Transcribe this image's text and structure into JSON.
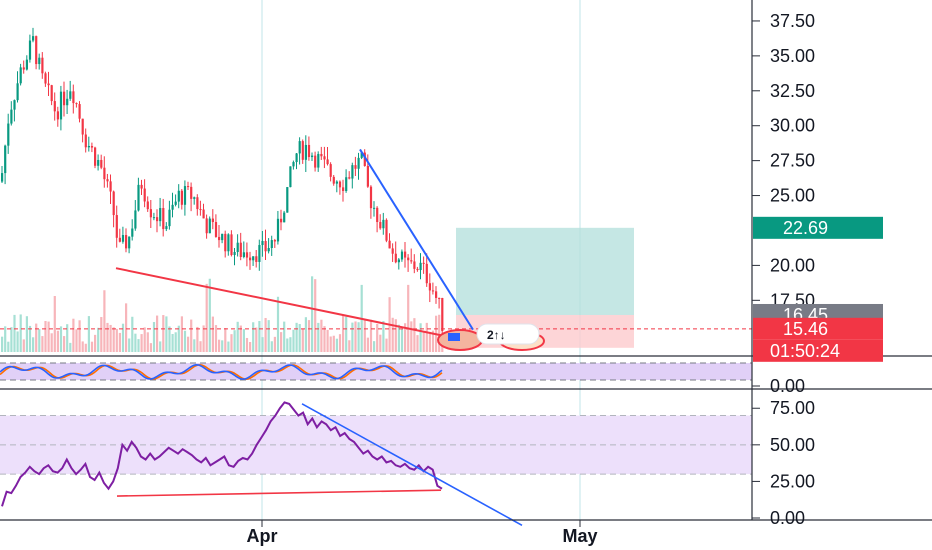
{
  "chart_data": [
    {
      "type": "candlestick",
      "pane": "price",
      "y_ticks": [
        "37.50",
        "35.00",
        "32.50",
        "30.00",
        "27.50",
        "25.00",
        "20.00",
        "17.50"
      ],
      "ylim": [
        13.8,
        39.0
      ],
      "x_labels": [
        "Apr",
        "May"
      ],
      "price_tags": [
        {
          "value": 22.69,
          "text": "22.69",
          "color": "#089981"
        },
        {
          "value": 16.45,
          "text": "16.45",
          "color": "#787b86"
        },
        {
          "value": 15.46,
          "text": "15.46",
          "color": "#f23645"
        }
      ],
      "countdown": {
        "text": "01:50:24",
        "color": "#f23645"
      },
      "current_price": 15.46,
      "position": {
        "target": 22.69,
        "entry": 16.45,
        "stop": 14.1
      },
      "badge": {
        "text": "2↑↓"
      },
      "trendlines": [
        {
          "color": "#f23645",
          "from": [
            116,
            19.8
          ],
          "to": [
            441,
            15.0
          ]
        },
        {
          "color": "#2962ff",
          "from": [
            360,
            28.3
          ],
          "to": [
            473,
            15.4
          ]
        }
      ],
      "colors": {
        "up": "#089981",
        "down": "#f23645",
        "target_zone": "#b2dfdb",
        "stop_zone": "#fccbcd"
      }
    },
    {
      "type": "line",
      "pane": "stochastic",
      "y_ticks": [
        "0.00"
      ],
      "series": [
        {
          "color": "#2962ff"
        },
        {
          "color": "#ff6d00"
        }
      ]
    },
    {
      "type": "line",
      "pane": "rsi",
      "y_ticks": [
        "75.00",
        "50.00",
        "25.00",
        "0.00"
      ],
      "ylim": [
        0,
        82
      ],
      "band": [
        30,
        70
      ],
      "color": "#7e1fa3",
      "values": [
        8,
        18,
        17,
        22,
        28,
        31,
        35,
        32,
        30,
        34,
        36,
        32,
        31,
        34,
        40,
        34,
        30,
        33,
        37,
        28,
        26,
        31,
        24,
        20,
        25,
        34,
        50,
        46,
        52,
        48,
        42,
        40,
        44,
        40,
        42,
        45,
        48,
        46,
        44,
        47,
        45,
        43,
        40,
        38,
        41,
        36,
        38,
        40,
        42,
        36,
        35,
        39,
        41,
        40,
        44,
        50,
        55,
        60,
        66,
        70,
        75,
        79,
        78,
        74,
        70,
        72,
        64,
        68,
        62,
        66,
        64,
        60,
        62,
        56,
        58,
        54,
        52,
        48,
        44,
        46,
        42,
        40,
        42,
        38,
        39,
        36,
        35,
        37,
        34,
        33,
        36,
        32,
        35,
        33,
        22,
        20
      ],
      "trendlines": [
        {
          "color": "#f23645",
          "from": [
            117,
            15
          ],
          "to": [
            441,
            19
          ]
        },
        {
          "color": "#2962ff",
          "from": [
            302,
            78
          ],
          "to": [
            522,
            -5
          ]
        }
      ]
    }
  ]
}
